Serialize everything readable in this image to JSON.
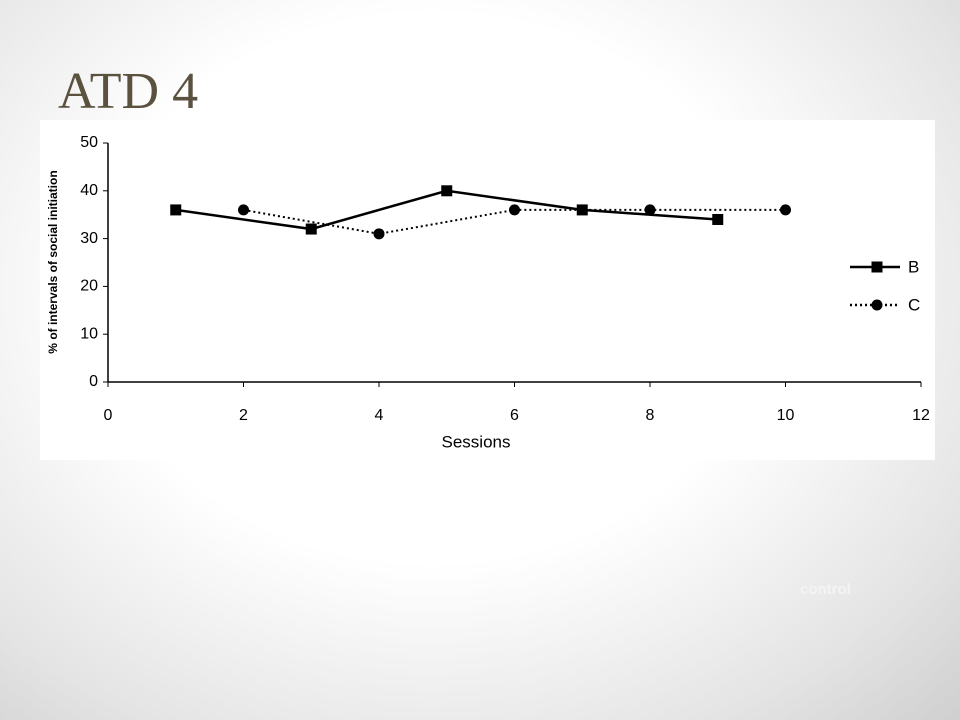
{
  "title": "ATD 4",
  "footer_text": "control",
  "chart_data": {
    "type": "line",
    "xlabel": "Sessions",
    "ylabel": "% of intervals of social initiation",
    "xlim": [
      0,
      12
    ],
    "xticks": [
      0,
      2,
      4,
      6,
      8,
      10,
      12
    ],
    "ylim": [
      0,
      50
    ],
    "yticks": [
      0,
      10,
      20,
      30,
      40,
      50
    ],
    "grid": false,
    "legend": "right",
    "series": [
      {
        "name": "B",
        "color": "#000000",
        "marker": "square",
        "dash": "solid",
        "x": [
          1,
          3,
          5,
          7,
          9
        ],
        "values": [
          36,
          32,
          40,
          36,
          34
        ]
      },
      {
        "name": "C",
        "color": "#000000",
        "marker": "circle",
        "dash": "dotted",
        "x": [
          2,
          4,
          6,
          8,
          10
        ],
        "values": [
          36,
          31,
          36,
          36,
          36
        ]
      }
    ]
  }
}
